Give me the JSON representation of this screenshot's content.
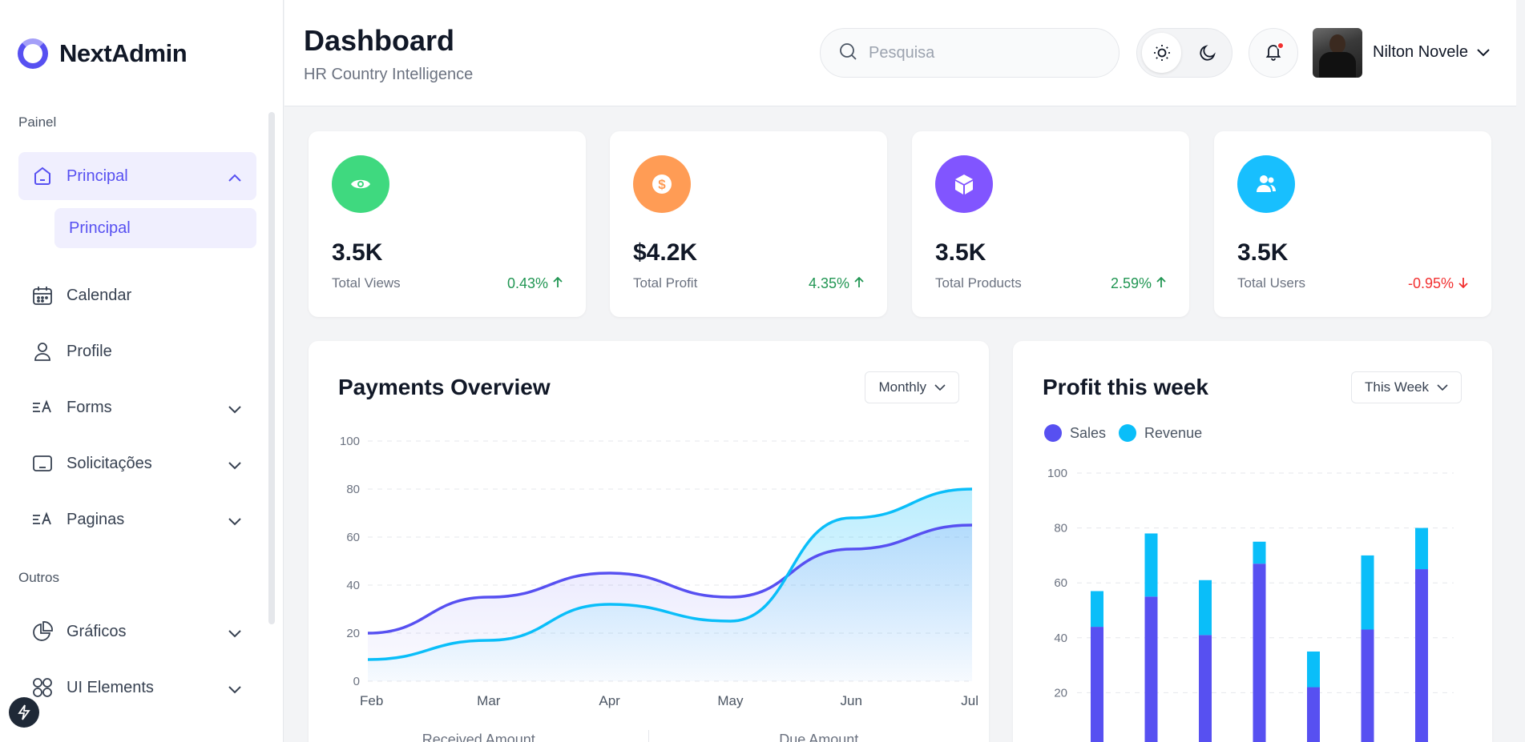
{
  "sidebar": {
    "brand": "NextAdmin",
    "section_main": "Painel",
    "section_other": "Outros",
    "items": [
      {
        "label": "Principal",
        "icon": "home-icon"
      },
      {
        "label": "Calendar",
        "icon": "calendar-icon"
      },
      {
        "label": "Profile",
        "icon": "user-icon"
      },
      {
        "label": "Forms",
        "icon": "forms-icon"
      },
      {
        "label": "Solicitações",
        "icon": "table-icon"
      },
      {
        "label": "Paginas",
        "icon": "pages-icon"
      },
      {
        "label": "Gráficos",
        "icon": "pie-chart-icon"
      },
      {
        "label": "UI Elements",
        "icon": "grid-icon"
      }
    ],
    "sub_item": "Principal"
  },
  "header": {
    "title": "Dashboard",
    "subtitle": "HR Country Intelligence",
    "search_placeholder": "Pesquisa",
    "user_name": "Nilton Novele"
  },
  "stats": [
    {
      "value": "3.5K",
      "label": "Total Views",
      "change": "0.43%",
      "trend": "up",
      "color": "#3fd97f",
      "icon": "eye-icon"
    },
    {
      "value": "$4.2K",
      "label": "Total Profit",
      "change": "4.35%",
      "trend": "up",
      "color": "#ff9c55",
      "icon": "dollar-icon"
    },
    {
      "value": "3.5K",
      "label": "Total Products",
      "change": "2.59%",
      "trend": "up",
      "color": "#8155ff",
      "icon": "box-icon"
    },
    {
      "value": "3.5K",
      "label": "Total Users",
      "change": "-0.95%",
      "trend": "down",
      "color": "#18bffe",
      "icon": "users-icon"
    }
  ],
  "payments": {
    "title": "Payments Overview",
    "period": "Monthly",
    "footer_received": "Received Amount",
    "footer_due": "Due Amount"
  },
  "profit": {
    "title": "Profit this week",
    "period": "This Week"
  },
  "chart_data": [
    {
      "type": "area",
      "x": [
        "Feb",
        "Mar",
        "Apr",
        "May",
        "Jun",
        "Jul"
      ],
      "yticks": [
        0,
        20,
        40,
        60,
        80,
        100
      ],
      "ylim": [
        0,
        100
      ],
      "series": [
        {
          "values": [
            20,
            35,
            45,
            35,
            55,
            65
          ],
          "color": "#5750f1"
        },
        {
          "values": [
            9,
            17,
            32,
            25,
            68,
            80
          ],
          "color": "#0abef9"
        }
      ]
    },
    {
      "type": "bar",
      "stacked": true,
      "yticks": [
        20,
        40,
        60,
        80,
        100
      ],
      "ylim": [
        0,
        100
      ],
      "legend": [
        "Sales",
        "Revenue"
      ],
      "series": [
        {
          "name": "Sales",
          "values": [
            44,
            55,
            41,
            67,
            22,
            43,
            65
          ],
          "color": "#5750f1"
        },
        {
          "name": "Revenue",
          "values": [
            13,
            23,
            20,
            8,
            13,
            27,
            15
          ],
          "color": "#0abef9"
        }
      ]
    }
  ]
}
